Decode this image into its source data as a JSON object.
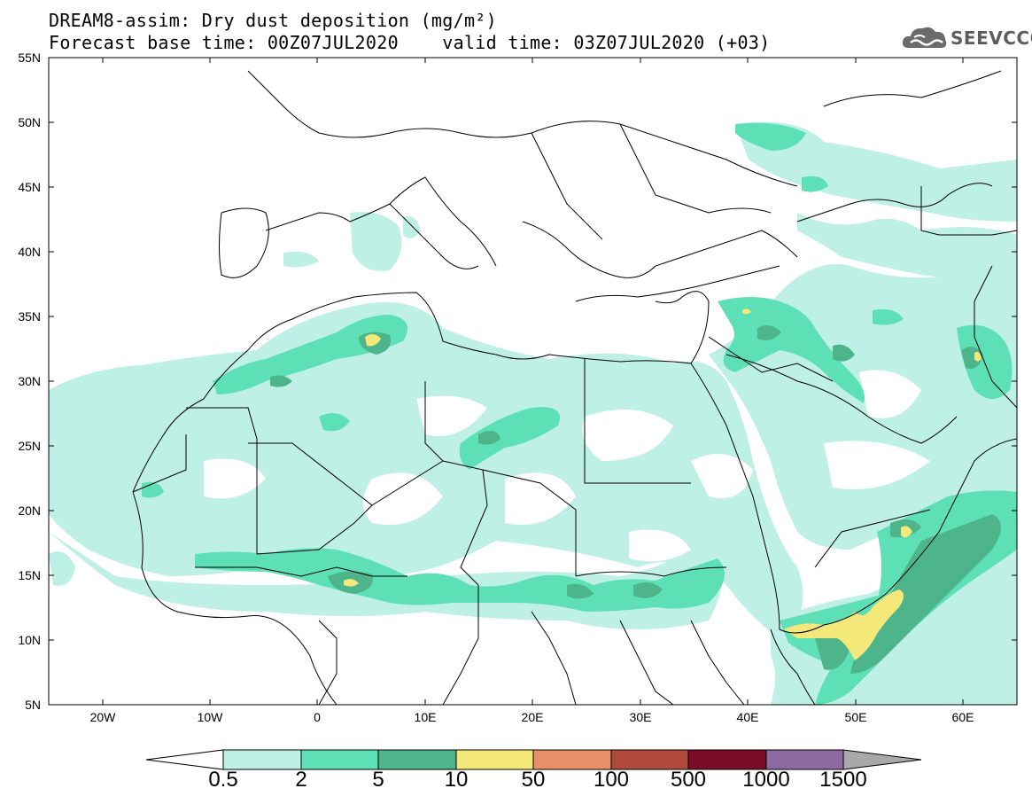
{
  "title": {
    "line1": "DREAM8-assim: Dry dust deposition (mg/m²)",
    "line2": "Forecast base time: 00Z07JUL2020    valid time: 03Z07JUL2020 (+03)"
  },
  "logo": {
    "text": "SEEVCCC",
    "icon": "cloud-logo-icon"
  },
  "axes": {
    "lat_labels": [
      "55N",
      "50N",
      "45N",
      "40N",
      "35N",
      "30N",
      "25N",
      "20N",
      "15N",
      "10N",
      "5N"
    ],
    "lon_labels": [
      "20W",
      "10W",
      "0",
      "10E",
      "20E",
      "30E",
      "40E",
      "50E",
      "60E"
    ],
    "lat_range": [
      5,
      55
    ],
    "lon_range": [
      -25,
      65
    ]
  },
  "colorbar": {
    "labels": [
      "0.5",
      "2",
      "5",
      "10",
      "50",
      "100",
      "500",
      "1000",
      "1500"
    ],
    "colors": [
      "#bff0e6",
      "#5ee0b6",
      "#4db48c",
      "#f5e87a",
      "#e8906a",
      "#b04a3c",
      "#7a0c2a",
      "#8e6aa2",
      "#a9a9a9"
    ],
    "under_color": "#ffffff"
  },
  "colors": {
    "level1": "#bff0e6",
    "level2": "#5ee0b6",
    "level3": "#4db48c",
    "level4": "#f5e87a"
  }
}
